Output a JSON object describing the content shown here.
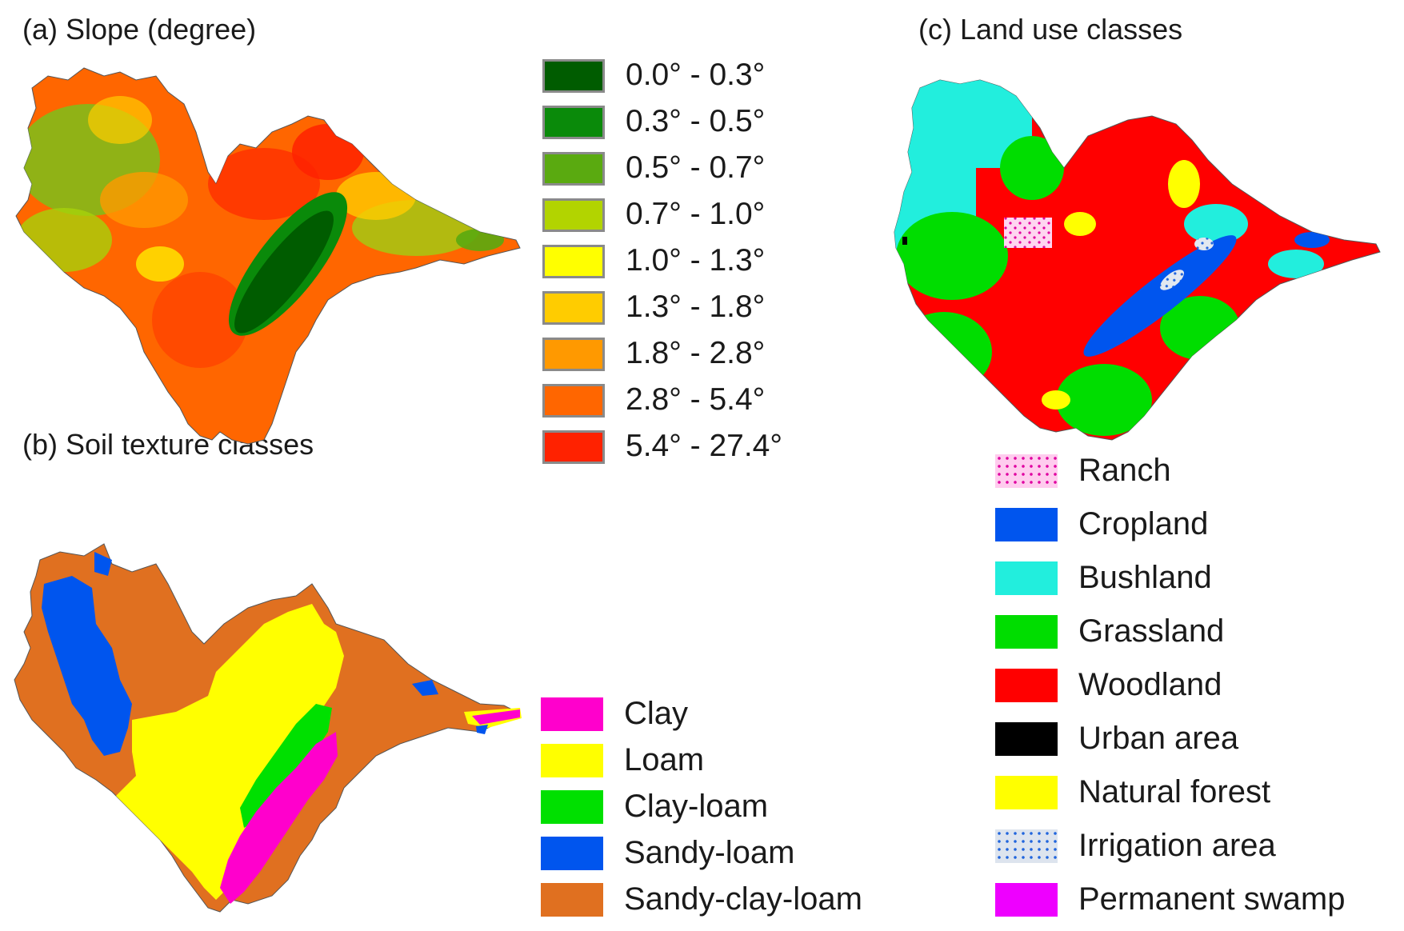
{
  "panels": {
    "slope": {
      "title": "(a) Slope (degree)",
      "legend": [
        {
          "label": "0.0° - 0.3°",
          "color": "#005c00"
        },
        {
          "label": "0.3° - 0.5°",
          "color": "#0a8a0a"
        },
        {
          "label": "0.5° - 0.7°",
          "color": "#5aaa10"
        },
        {
          "label": "0.7° - 1.0°",
          "color": "#b2d400"
        },
        {
          "label": "1.0° - 1.3°",
          "color": "#ffff00"
        },
        {
          "label": "1.3° - 1.8°",
          "color": "#ffcc00"
        },
        {
          "label": "1.8° - 2.8°",
          "color": "#ff9900"
        },
        {
          "label": "2.8° - 5.4°",
          "color": "#ff6600"
        },
        {
          "label": "5.4° - 27.4°",
          "color": "#ff2200"
        }
      ]
    },
    "soil": {
      "title": "(b) Soil texture classes",
      "legend": [
        {
          "label": "Clay",
          "color": "#ff00cc"
        },
        {
          "label": "Loam",
          "color": "#ffff00"
        },
        {
          "label": "Clay-loam",
          "color": "#00e000"
        },
        {
          "label": "Sandy-loam",
          "color": "#0055ee"
        },
        {
          "label": "Sandy-clay-loam",
          "color": "#e07020"
        }
      ]
    },
    "landuse": {
      "title": "(c) Land use classes",
      "legend": [
        {
          "label": "Ranch",
          "color": "#ffccee",
          "pattern": "dots-magenta"
        },
        {
          "label": "Cropland",
          "color": "#0055ee"
        },
        {
          "label": "Bushland",
          "color": "#22eedd"
        },
        {
          "label": "Grassland",
          "color": "#00dd00"
        },
        {
          "label": "Woodland",
          "color": "#ff0000"
        },
        {
          "label": "Urban area",
          "color": "#000000"
        },
        {
          "label": "Natural forest",
          "color": "#ffff00"
        },
        {
          "label": "Irrigation area",
          "color": "#dde4ee",
          "pattern": "dots-blue"
        },
        {
          "label": "Permanent swamp",
          "color": "#ee00ff"
        }
      ]
    }
  }
}
